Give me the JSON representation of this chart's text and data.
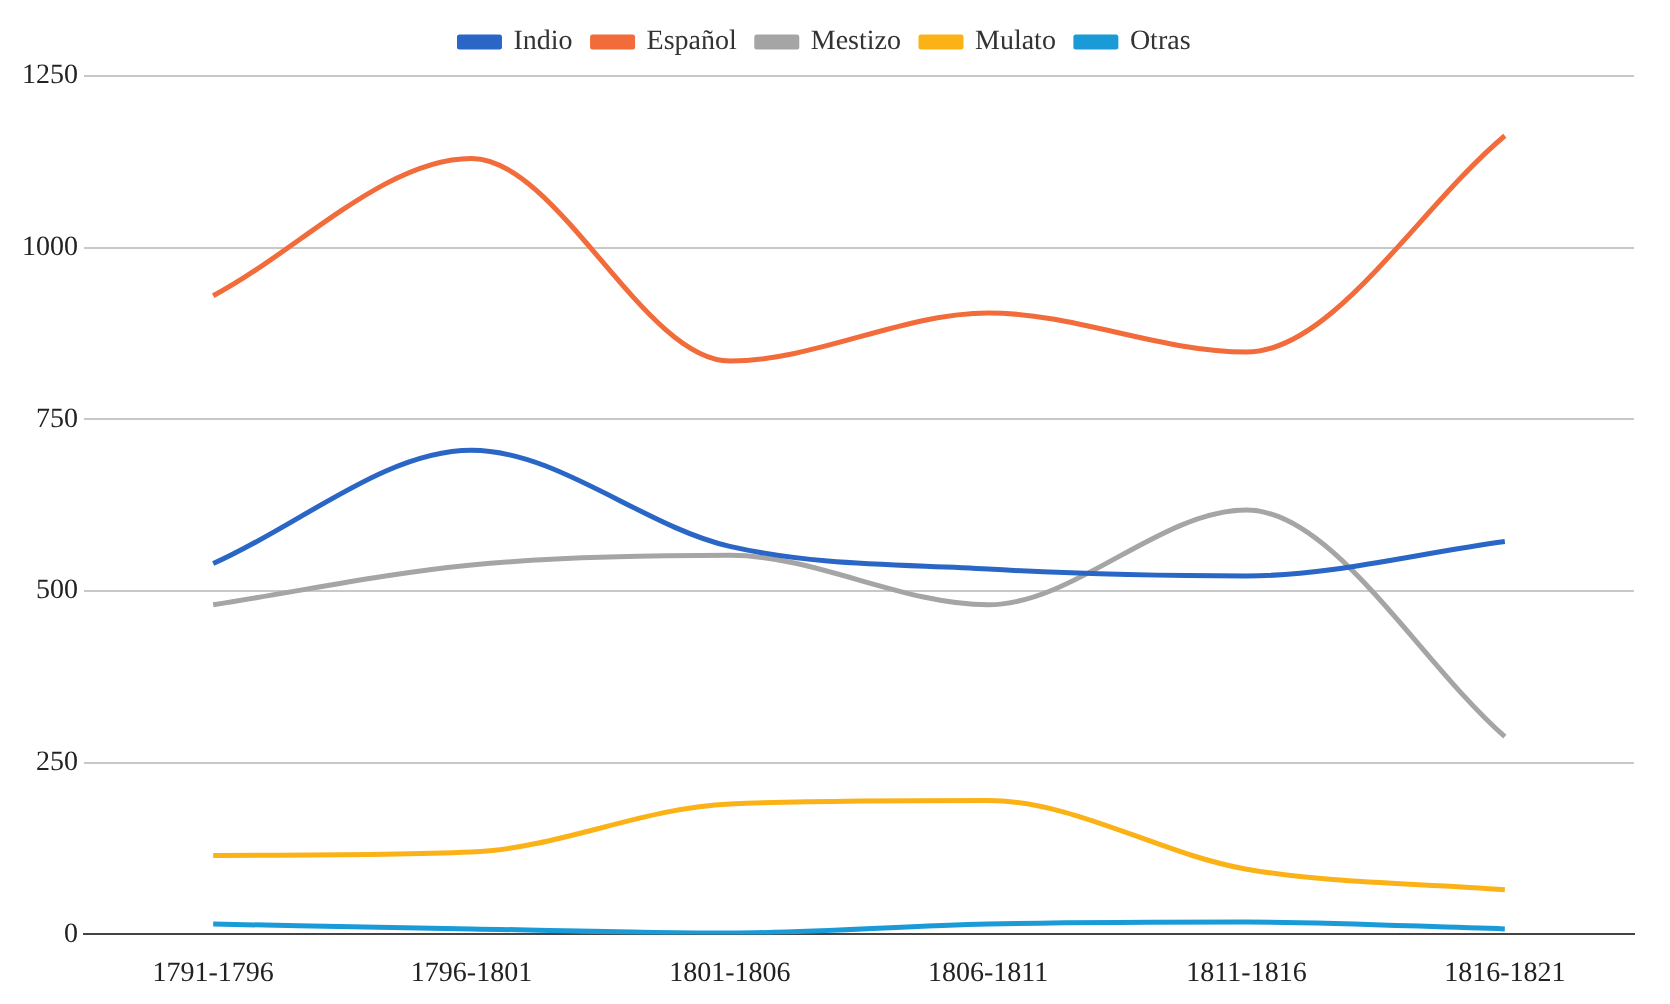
{
  "chart_data": {
    "type": "line",
    "categories": [
      "1791-1796",
      "1796-1801",
      "1801-1806",
      "1806-1811",
      "1811-1816",
      "1816-1821"
    ],
    "series": [
      {
        "name": "Indio",
        "color": "#2a66c6",
        "values": [
          540,
          705,
          565,
          532,
          522,
          572
        ]
      },
      {
        "name": "Español",
        "color": "#f26b3a",
        "values": [
          930,
          1130,
          835,
          905,
          848,
          1163
        ]
      },
      {
        "name": "Mestizo",
        "color": "#a5a5a5",
        "values": [
          480,
          538,
          552,
          480,
          618,
          288
        ]
      },
      {
        "name": "Mulato",
        "color": "#fbb217",
        "values": [
          115,
          120,
          190,
          195,
          95,
          65
        ]
      },
      {
        "name": "Otras",
        "color": "#1a9bd7",
        "values": [
          15,
          8,
          2,
          15,
          18,
          8
        ]
      }
    ],
    "ylim": [
      0,
      1250
    ],
    "yticks": [
      0,
      250,
      500,
      750,
      1000,
      1250
    ],
    "grid": "y",
    "legend": "top",
    "marker": "none",
    "line_style": "solid"
  }
}
